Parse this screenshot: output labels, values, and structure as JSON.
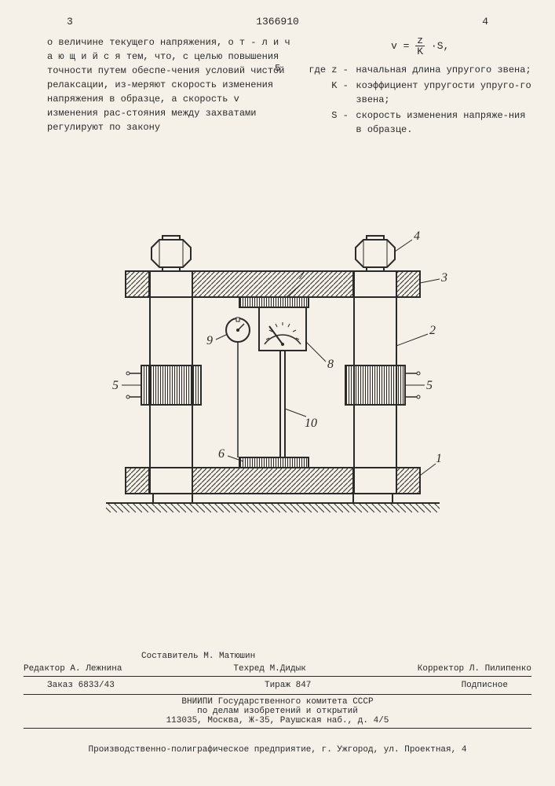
{
  "page_left": "3",
  "page_right": "4",
  "doc_number": "1366910",
  "left_text": "о величине текущего напряжения, о т - л и ч а ю щ и й с я  тем, что, с целью повышения точности путем обеспе-чения условий чистой релаксации, из-меряют скорость изменения  напряжения в образце, а скорость v изменения рас-стояния между захватами регулируют по закону",
  "margin_num": "5",
  "formula_lhs": "v = ",
  "formula_num": "z",
  "formula_den": "K",
  "formula_suffix": "·S,",
  "defs": [
    {
      "label": "где z -",
      "text": "начальная длина упругого звена;"
    },
    {
      "label": "    K -",
      "text": "коэффициент упругости упруго-го звена;"
    },
    {
      "label": "    S -",
      "text": "скорость изменения напряже-ния в образце."
    }
  ],
  "diagram": {
    "labels": [
      "1",
      "2",
      "3",
      "4",
      "5",
      "6",
      "7",
      "8",
      "9",
      "10"
    ],
    "colors": {
      "stroke": "#2a2a2a",
      "fill_white": "#f5f0e8",
      "hatch": "#2a2a2a"
    }
  },
  "credits": {
    "compiler": "Составитель М. Матюшин",
    "editor": "Редактор А. Лежнина",
    "techred": "Техред М.Дидык",
    "corrector": "Корректор Л. Пилипенко"
  },
  "order": {
    "zakaz": "Заказ 6833/43",
    "tirazh": "Тираж 847",
    "podpisnoe": "Подписное"
  },
  "org": {
    "line1": "ВНИИПИ Государственного комитета СССР",
    "line2": "по делам изобретений и открытий",
    "line3": "113035, Москва, Ж-35, Раушская наб., д. 4/5"
  },
  "bottom": "Производственно-полиграфическое предприятие, г. Ужгород, ул. Проектная, 4"
}
